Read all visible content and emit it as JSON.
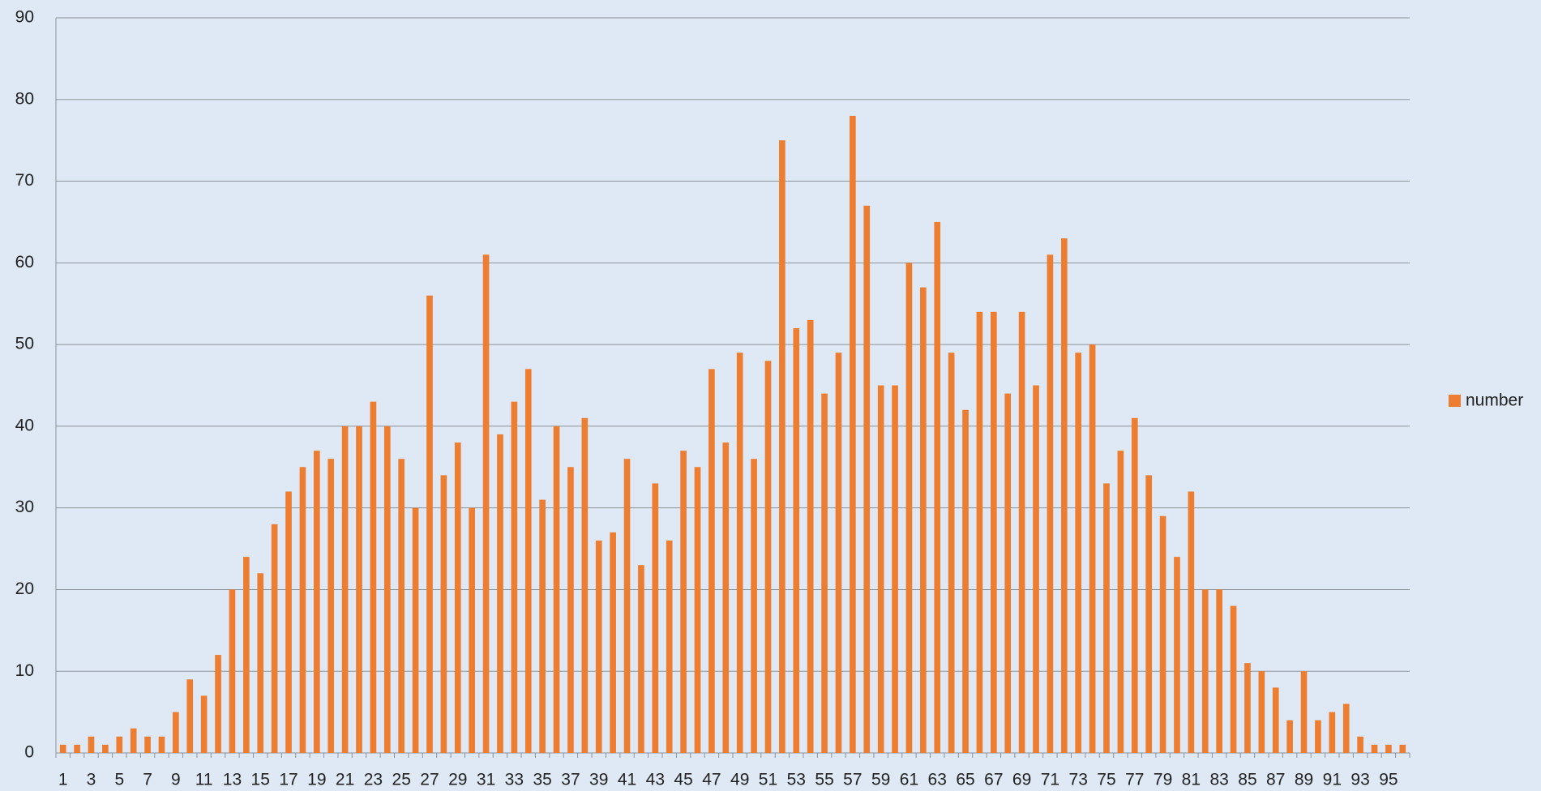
{
  "chart_data": {
    "type": "bar",
    "categories": [
      1,
      null,
      3,
      null,
      5,
      null,
      7,
      null,
      9,
      null,
      11,
      null,
      13,
      null,
      15,
      null,
      17,
      null,
      19,
      null,
      21,
      null,
      23,
      null,
      25,
      null,
      27,
      null,
      29,
      null,
      31,
      null,
      33,
      null,
      35,
      null,
      37,
      null,
      39,
      null,
      41,
      null,
      43,
      null,
      45,
      null,
      47,
      null,
      49,
      null,
      51,
      null,
      53,
      null,
      55,
      null,
      57,
      null,
      59,
      null,
      61,
      null,
      63,
      null,
      65,
      null,
      67,
      null,
      69,
      null,
      71,
      null,
      73,
      null,
      75,
      null,
      77,
      null,
      79,
      null,
      81,
      null,
      83,
      null,
      85,
      null,
      87,
      null,
      89,
      null,
      91,
      null,
      93,
      null,
      95,
      null
    ],
    "series": [
      {
        "name": "number",
        "color": "#ed7d31",
        "values": [
          1,
          1,
          2,
          1,
          2,
          3,
          2,
          2,
          5,
          9,
          7,
          12,
          20,
          24,
          22,
          28,
          32,
          35,
          37,
          36,
          40,
          40,
          43,
          40,
          36,
          30,
          56,
          34,
          38,
          30,
          61,
          39,
          43,
          47,
          31,
          40,
          35,
          41,
          26,
          27,
          36,
          23,
          33,
          26,
          37,
          35,
          47,
          38,
          49,
          36,
          48,
          75,
          52,
          53,
          44,
          49,
          78,
          67,
          45,
          45,
          60,
          57,
          65,
          49,
          42,
          54,
          54,
          44,
          54,
          45,
          61,
          63,
          49,
          50,
          33,
          37,
          41,
          34,
          29,
          24,
          32,
          20,
          20,
          18,
          11,
          10,
          8,
          4,
          10,
          4,
          5,
          6,
          2,
          1,
          1,
          1
        ]
      }
    ],
    "ylim": [
      0,
      90
    ],
    "yticks": [
      0,
      10,
      20,
      30,
      40,
      50,
      60,
      70,
      80,
      90
    ],
    "grid": true,
    "legend": "right"
  }
}
